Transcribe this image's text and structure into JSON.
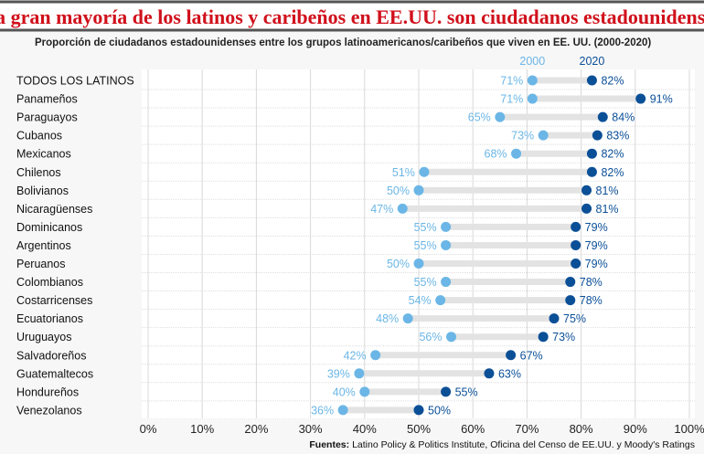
{
  "chart_data": {
    "type": "dumbbell",
    "title": "La gran mayoría de los latinos y caribeños en EE.UU. son ciudadanos estadounidenses",
    "subtitle": "Proporción de ciudadanos estadounidenses entre los grupos latinoamericanos/caribeños que viven en EE. UU. (2000-2020)",
    "categories": [
      "TODOS LOS LATINOS",
      "Panameños",
      "Paraguayos",
      "Cubanos",
      "Mexicanos",
      "Chilenos",
      "Bolivianos",
      "Nicaragüenses",
      "Dominicanos",
      "Argentinos",
      "Peruanos",
      "Colombianos",
      "Costarricenses",
      "Ecuatorianos",
      "Uruguayos",
      "Salvadoreños",
      "Guatemaltecos",
      "Hondureños",
      "Venezolanos"
    ],
    "series": [
      {
        "name": "2000",
        "color": "#6bb6e6",
        "values": [
          71,
          71,
          65,
          73,
          68,
          51,
          50,
          47,
          55,
          55,
          50,
          55,
          54,
          48,
          56,
          42,
          39,
          40,
          36
        ]
      },
      {
        "name": "2020",
        "color": "#0b4f97",
        "values": [
          82,
          91,
          84,
          83,
          82,
          82,
          81,
          81,
          79,
          79,
          79,
          78,
          78,
          75,
          73,
          67,
          63,
          55,
          50
        ]
      }
    ],
    "xlim": [
      0,
      100
    ],
    "xticks": [
      "0%",
      "10%",
      "20%",
      "30%",
      "40%",
      "50%",
      "60%",
      "70%",
      "80%",
      "90%",
      "100%"
    ],
    "grid": true,
    "legend": "top",
    "source_label": "Fuentes:",
    "source": "Latino Policy & Politics Institute, Oficina del Censo de EE.UU. y Moody's Ratings"
  }
}
